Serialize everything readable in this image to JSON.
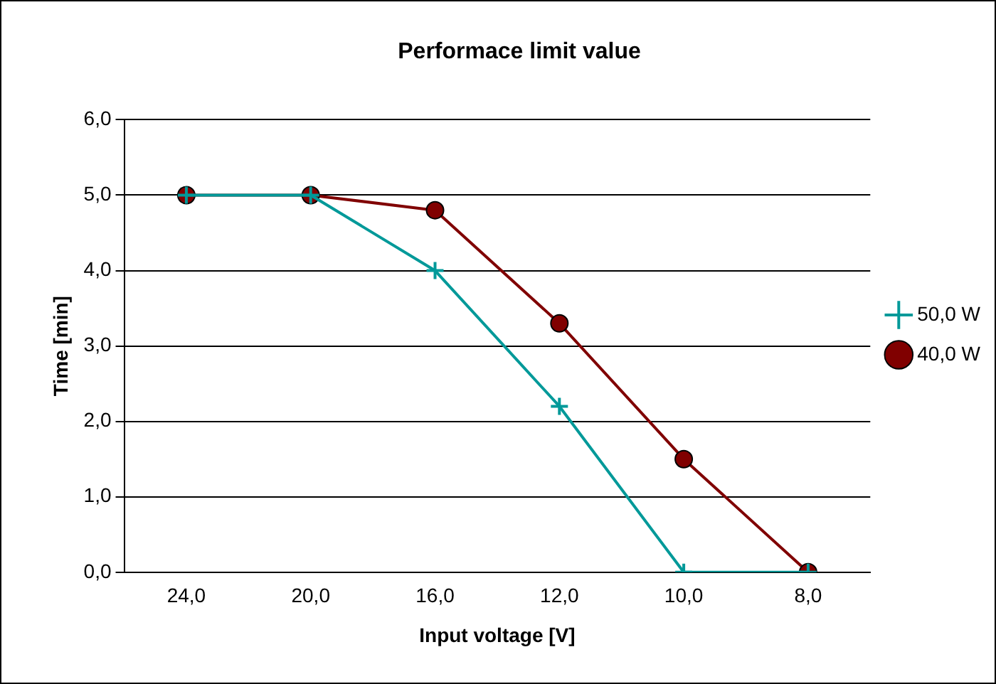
{
  "chart_data": {
    "type": "line",
    "title": "Performace limit value",
    "xlabel": "Input voltage [V]",
    "ylabel": "Time [min]",
    "categories": [
      "24,0",
      "20,0",
      "16,0",
      "12,0",
      "10,0",
      "8,0"
    ],
    "series": [
      {
        "name": "40,0 W",
        "color": "#800000",
        "marker": "circle",
        "values": [
          5.0,
          5.0,
          4.8,
          3.3,
          1.5,
          0.0
        ]
      },
      {
        "name": "50,0 W",
        "color": "#009999",
        "marker": "cross",
        "values": [
          5.0,
          5.0,
          4.0,
          2.2,
          0.0,
          0.0
        ]
      }
    ],
    "ylim": [
      0,
      6
    ],
    "yticks": [
      {
        "value": 0,
        "label": "0,0"
      },
      {
        "value": 1,
        "label": "1,0"
      },
      {
        "value": 2,
        "label": "2,0"
      },
      {
        "value": 3,
        "label": "3,0"
      },
      {
        "value": 4,
        "label": "4,0"
      },
      {
        "value": 5,
        "label": "5,0"
      },
      {
        "value": 6,
        "label": "6,0"
      }
    ],
    "grid": "y",
    "legend": "right",
    "line_style": "solid"
  }
}
